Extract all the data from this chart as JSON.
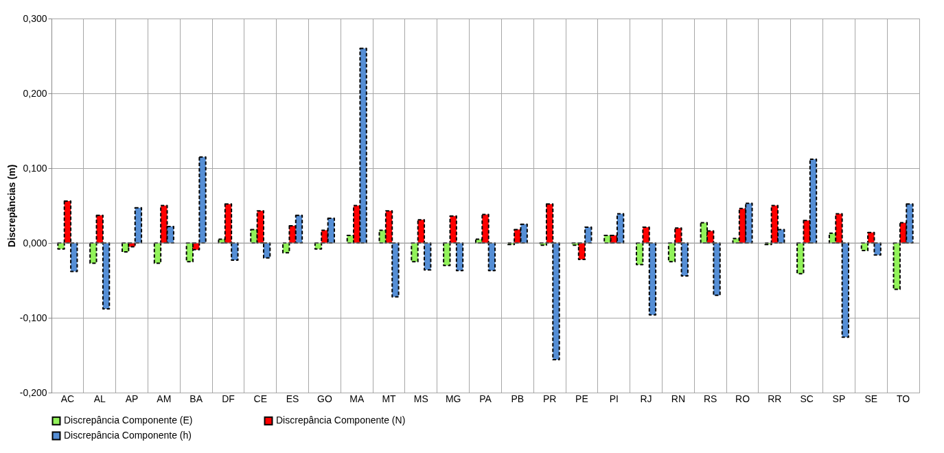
{
  "chart_data": {
    "type": "bar",
    "ylabel": "Discrepâncias (m)",
    "categories": [
      "AC",
      "AL",
      "AP",
      "AM",
      "BA",
      "DF",
      "CE",
      "ES",
      "GO",
      "MA",
      "MT",
      "MS",
      "MG",
      "PA",
      "PB",
      "PR",
      "PE",
      "PI",
      "RJ",
      "RN",
      "RS",
      "RO",
      "RR",
      "SC",
      "SP",
      "SE",
      "TO"
    ],
    "series": [
      {
        "name": "Discrepância Componente (E)",
        "color": "#92f25a",
        "values": [
          -0.008,
          -0.027,
          -0.012,
          -0.027,
          -0.025,
          0.005,
          0.018,
          -0.013,
          -0.008,
          0.01,
          0.017,
          -0.025,
          -0.03,
          0.005,
          -0.002,
          -0.003,
          -0.003,
          0.01,
          -0.029,
          -0.025,
          0.027,
          0.006,
          -0.002,
          -0.041,
          0.013,
          -0.01,
          -0.062
        ]
      },
      {
        "name": "Discrepância Componente (N)",
        "color": "#ff0000",
        "values": [
          0.056,
          0.037,
          -0.005,
          0.05,
          -0.009,
          0.052,
          0.043,
          0.023,
          0.017,
          0.05,
          0.043,
          0.031,
          0.036,
          0.038,
          0.018,
          0.052,
          -0.022,
          0.01,
          0.021,
          0.02,
          0.016,
          0.046,
          0.05,
          0.03,
          0.039,
          0.014,
          0.027
        ]
      },
      {
        "name": "Discrepância Componente (h)",
        "color": "#558ed5",
        "values": [
          -0.038,
          -0.088,
          0.047,
          0.022,
          0.115,
          -0.023,
          -0.02,
          0.037,
          0.033,
          0.26,
          -0.072,
          -0.036,
          -0.037,
          -0.037,
          0.025,
          -0.156,
          0.021,
          0.039,
          -0.096,
          -0.044,
          -0.07,
          0.053,
          0.018,
          0.112,
          -0.126,
          -0.016,
          0.052
        ]
      }
    ],
    "ylim": [
      -0.2,
      0.3
    ],
    "yticks": [
      {
        "value": -0.2,
        "label": "-0,200"
      },
      {
        "value": -0.1,
        "label": "-0,100"
      },
      {
        "value": 0,
        "label": "0,000"
      },
      {
        "value": 0.1,
        "label": "0,100"
      },
      {
        "value": 0.2,
        "label": "0,200"
      },
      {
        "value": 0.3,
        "label": "0,300"
      }
    ],
    "grid": true,
    "legend": "bottom",
    "line_style": "dashed"
  }
}
